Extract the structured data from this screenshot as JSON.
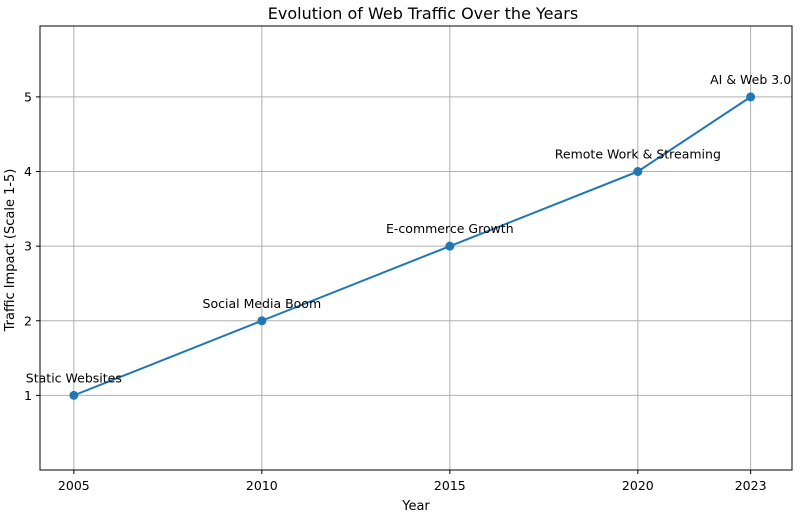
{
  "chart_data": {
    "type": "line",
    "title": "Evolution of Web Traffic Over the Years",
    "xlabel": "Year",
    "ylabel": "Traffic Impact (Scale 1-5)",
    "x": [
      2005,
      2010,
      2015,
      2020,
      2023
    ],
    "y": [
      1,
      2,
      3,
      4,
      5
    ],
    "annotations": [
      "Static Websites",
      "Social Media Boom",
      "E-commerce Growth",
      "Remote Work & Streaming",
      "AI & Web 3.0"
    ],
    "xticks": [
      2005,
      2010,
      2015,
      2020,
      2023
    ],
    "yticks": [
      1,
      2,
      3,
      4,
      5
    ],
    "xlim": [
      2004.1,
      2024.1
    ],
    "ylim": [
      0.0,
      5.95
    ],
    "grid": true,
    "marker": "circle",
    "color": "#1f77b4"
  }
}
